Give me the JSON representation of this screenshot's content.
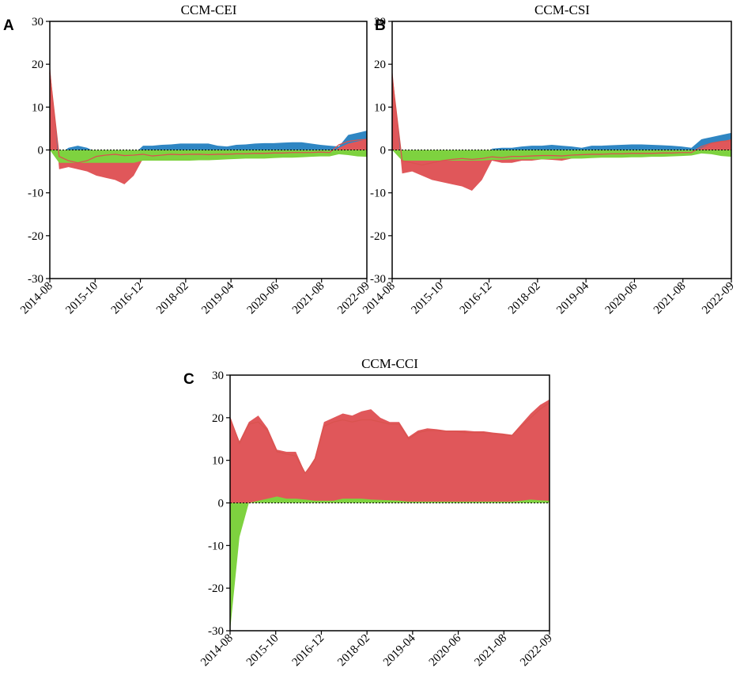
{
  "colors": {
    "blue": "#2f86c3",
    "red": "#e0575a",
    "green": "#7ed23f",
    "line": "#d9534f",
    "axis": "#000000"
  },
  "chart_data": [
    {
      "panel": "A",
      "title": "CCM-CEI",
      "type": "area",
      "xlabel": "",
      "ylabel": "",
      "x_tick_labels": [
        "2014-08",
        "2015-10",
        "2016-12",
        "2018-02",
        "2019-04",
        "2020-06",
        "2021-08",
        "2022-09"
      ],
      "y_ticks": [
        -30,
        -20,
        -10,
        0,
        10,
        20,
        30
      ],
      "ylim": [
        -30,
        30
      ],
      "zero_line": "dashed",
      "x": [
        "2014-08",
        "2014-10",
        "2015-01",
        "2015-04",
        "2015-07",
        "2015-10",
        "2016-01",
        "2016-04",
        "2016-07",
        "2016-10",
        "2016-12",
        "2017-03",
        "2017-06",
        "2017-09",
        "2017-12",
        "2018-02",
        "2018-05",
        "2018-08",
        "2018-11",
        "2019-02",
        "2019-04",
        "2019-07",
        "2019-10",
        "2020-01",
        "2020-04",
        "2020-06",
        "2020-09",
        "2020-12",
        "2021-03",
        "2021-06",
        "2021-08",
        "2021-11",
        "2022-02",
        "2022-05",
        "2022-09"
      ],
      "series": [
        {
          "color": "blue",
          "values": [
            18,
            -1,
            0.5,
            1,
            0.5,
            -0.5,
            -1,
            -0.5,
            -2,
            -1,
            1,
            1,
            1.2,
            1.3,
            1.5,
            1.5,
            1.5,
            1.5,
            1,
            0.8,
            1.2,
            1.3,
            1.5,
            1.6,
            1.6,
            1.7,
            1.8,
            1.8,
            1.5,
            1.2,
            1,
            0.8,
            3.5,
            4,
            4.5
          ]
        },
        {
          "color": "red",
          "values": [
            20,
            -4.5,
            -4,
            -4.5,
            -5,
            -6,
            -6.5,
            -7,
            -8,
            -6,
            -2,
            -2.5,
            -2.5,
            -2.4,
            -2.3,
            -2.2,
            -2.2,
            -2.4,
            -2,
            -1.8,
            -1.7,
            -1.6,
            -1.6,
            -1.5,
            -1.5,
            -1.5,
            -1.5,
            -1.4,
            -1.3,
            -1.2,
            -1.2,
            0.5,
            1.5,
            2,
            2.5
          ]
        },
        {
          "color": "green",
          "values": [
            0,
            -3,
            -3,
            -3,
            -3,
            -3,
            -3,
            -3,
            -3,
            -3,
            -2.5,
            -2.5,
            -2.5,
            -2.5,
            -2.5,
            -2.5,
            -2.4,
            -2.4,
            -2.3,
            -2.2,
            -2.1,
            -2,
            -2,
            -2,
            -1.9,
            -1.8,
            -1.8,
            -1.7,
            -1.6,
            -1.5,
            -1.5,
            -1,
            -1.2,
            -1.5,
            -1.6
          ]
        }
      ],
      "line": [
        18,
        -1.5,
        -2.5,
        -3,
        -2.5,
        -1.5,
        -1.2,
        -1,
        -1.3,
        -1.2,
        -1,
        -1.4,
        -1.2,
        -1,
        -1.1,
        -1,
        -1,
        -1.1,
        -1,
        -1,
        -0.9,
        -0.9,
        -0.8,
        -0.8,
        -0.7,
        -0.7,
        -0.6,
        -0.6,
        -0.6,
        -0.5,
        -0.6,
        1.2,
        2,
        2.3,
        2.5
      ]
    },
    {
      "panel": "B",
      "title": "CCM-CSI",
      "type": "area",
      "xlabel": "",
      "ylabel": "",
      "x_tick_labels": [
        "2014-08",
        "2015-10",
        "2016-12",
        "2018-02",
        "2019-04",
        "2020-06",
        "2021-08",
        "2022-09"
      ],
      "y_ticks": [
        -30,
        -20,
        -10,
        0,
        10,
        20,
        30
      ],
      "ylim": [
        -30,
        30
      ],
      "zero_line": "dashed",
      "x": [
        "2014-08",
        "2014-10",
        "2015-01",
        "2015-04",
        "2015-07",
        "2015-10",
        "2016-01",
        "2016-04",
        "2016-07",
        "2016-10",
        "2016-12",
        "2017-03",
        "2017-06",
        "2017-09",
        "2017-12",
        "2018-02",
        "2018-05",
        "2018-08",
        "2018-11",
        "2019-02",
        "2019-04",
        "2019-07",
        "2019-10",
        "2020-01",
        "2020-04",
        "2020-06",
        "2020-09",
        "2020-12",
        "2021-03",
        "2021-06",
        "2021-08",
        "2021-11",
        "2022-02",
        "2022-05",
        "2022-09"
      ],
      "series": [
        {
          "color": "blue",
          "values": [
            17,
            -3,
            -2,
            -2.5,
            -3,
            -4,
            -4,
            -5,
            -6,
            -4,
            0.3,
            0.5,
            0.5,
            0.8,
            1,
            1,
            1.2,
            1,
            0.8,
            0.5,
            1,
            1,
            1.1,
            1.2,
            1.3,
            1.3,
            1.2,
            1.1,
            1,
            0.8,
            0.5,
            2.5,
            3,
            3.5,
            4
          ]
        },
        {
          "color": "red",
          "values": [
            19,
            -5.5,
            -5,
            -6,
            -7,
            -7.5,
            -8,
            -8.5,
            -9.5,
            -7,
            -2.5,
            -3,
            -3,
            -2.5,
            -2.5,
            -2.2,
            -2.3,
            -2.5,
            -2,
            -1.8,
            -1.6,
            -1.6,
            -1.5,
            -1.5,
            -1.4,
            -1.4,
            -1.3,
            -1.3,
            -1.2,
            -1.1,
            -1.1,
            0.5,
            1.5,
            2,
            2.5
          ]
        },
        {
          "color": "green",
          "values": [
            0,
            -2.5,
            -2.5,
            -2.5,
            -2.5,
            -2.5,
            -2.5,
            -2.5,
            -2.5,
            -2.5,
            -2.3,
            -2.3,
            -2.2,
            -2.2,
            -2.2,
            -2.2,
            -2.1,
            -2,
            -2,
            -2,
            -1.9,
            -1.8,
            -1.8,
            -1.8,
            -1.7,
            -1.7,
            -1.6,
            -1.6,
            -1.5,
            -1.4,
            -1.3,
            -0.8,
            -1,
            -1.4,
            -1.6
          ]
        }
      ],
      "line": [
        17,
        -2.5,
        -3,
        -3.5,
        -3,
        -2.5,
        -2.2,
        -2,
        -2.2,
        -2,
        -1.6,
        -1.8,
        -1.5,
        -1.5,
        -1.4,
        -1.3,
        -1.3,
        -1.4,
        -1.2,
        -1.1,
        -1,
        -1,
        -0.9,
        -0.9,
        -0.8,
        -0.8,
        -0.8,
        -0.7,
        -0.7,
        -0.6,
        -0.6,
        0.8,
        1.6,
        2,
        2.2
      ]
    },
    {
      "panel": "C",
      "title": "CCM-CCI",
      "type": "area",
      "xlabel": "",
      "ylabel": "",
      "x_tick_labels": [
        "2014-08",
        "2015-10",
        "2016-12",
        "2018-02",
        "2019-04",
        "2020-06",
        "2021-08",
        "2022-09"
      ],
      "y_ticks": [
        -30,
        -20,
        -10,
        0,
        10,
        20,
        30
      ],
      "ylim": [
        -30,
        30
      ],
      "zero_line": "dashed",
      "x": [
        "2014-08",
        "2014-10",
        "2015-01",
        "2015-04",
        "2015-07",
        "2015-10",
        "2016-01",
        "2016-04",
        "2016-07",
        "2016-10",
        "2016-12",
        "2017-03",
        "2017-06",
        "2017-09",
        "2017-12",
        "2018-02",
        "2018-05",
        "2018-08",
        "2018-11",
        "2019-02",
        "2019-04",
        "2019-07",
        "2019-10",
        "2020-01",
        "2020-04",
        "2020-06",
        "2020-09",
        "2020-12",
        "2021-03",
        "2021-06",
        "2021-08",
        "2021-11",
        "2022-02",
        "2022-05",
        "2022-09"
      ],
      "series": [
        {
          "color": "blue",
          "values": [
            20,
            14,
            18.5,
            19,
            17,
            12,
            11.5,
            11,
            7,
            10,
            18,
            19,
            19.5,
            19,
            19.5,
            19.5,
            19,
            18.5,
            18.5,
            15,
            16.5,
            17,
            17,
            16.8,
            16.8,
            16.5,
            16.5,
            16.5,
            16.2,
            16,
            15.8,
            18,
            20,
            22,
            23.5
          ]
        },
        {
          "color": "red",
          "values": [
            20,
            14.5,
            19,
            20.5,
            17.5,
            12.5,
            12,
            12,
            7,
            10.5,
            19,
            20,
            21,
            20.5,
            21.5,
            22,
            20,
            19,
            19,
            15.5,
            17,
            17.5,
            17.3,
            17,
            17,
            17,
            16.8,
            16.8,
            16.5,
            16.3,
            16,
            18.5,
            21,
            23,
            24.3
          ]
        },
        {
          "color": "green",
          "values": [
            -30,
            -8,
            0,
            0.5,
            1,
            1.5,
            1,
            1,
            0.8,
            0.5,
            0.5,
            0.5,
            1,
            1,
            1,
            0.8,
            0.7,
            0.6,
            0.5,
            0.3,
            0.3,
            0.3,
            0.3,
            0.3,
            0.3,
            0.3,
            0.3,
            0.3,
            0.3,
            0.3,
            0.3,
            0.5,
            0.8,
            0.6,
            0.5
          ]
        }
      ],
      "line": [
        20,
        14,
        18.5,
        19,
        17,
        12,
        11.5,
        11,
        7,
        10,
        18,
        19,
        19.5,
        19,
        19.5,
        19.5,
        19,
        18.5,
        18.5,
        15,
        16.5,
        17,
        17,
        16.8,
        16.8,
        16.5,
        16.5,
        16.5,
        16.2,
        16,
        15.8,
        18,
        20,
        22,
        23.5
      ]
    }
  ]
}
